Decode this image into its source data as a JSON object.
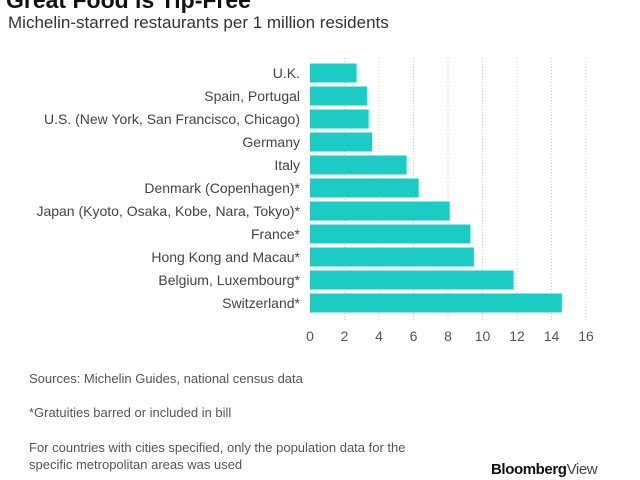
{
  "header": {
    "title": "Great Food is Tip-Free",
    "subtitle": "Michelin-starred restaurants per 1 million residents"
  },
  "chart_data": {
    "type": "bar",
    "orientation": "horizontal",
    "categories": [
      "U.K.",
      "Spain, Portugal",
      "U.S. (New York, San Francisco, Chicago)",
      "Germany",
      "Italy",
      "Denmark (Copenhagen)*",
      "Japan (Kyoto, Osaka, Kobe, Nara, Tokyo)*",
      "France*",
      "Hong Kong and Macau*",
      "Belgium, Luxembourg*",
      "Switzerland*"
    ],
    "values": [
      2.7,
      3.3,
      3.4,
      3.6,
      5.6,
      6.3,
      8.1,
      9.3,
      9.5,
      11.8,
      14.6
    ],
    "xlim": [
      0,
      16
    ],
    "xticks": [
      "0",
      "2",
      "4",
      "6",
      "8",
      "10",
      "12",
      "14",
      "16"
    ],
    "grid": true,
    "bar_color": "#1ccbc4",
    "grid_color": "#cccccc"
  },
  "notes": {
    "sources": "Sources: Michelin Guides, national census data",
    "gratuities": "*Gratuities barred or included in bill",
    "population_line1": "For countries with cities specified, only the population data for the",
    "population_line2": "specific metropolitan areas was used"
  },
  "branding": {
    "bold": "Bloomberg",
    "light": "View"
  }
}
